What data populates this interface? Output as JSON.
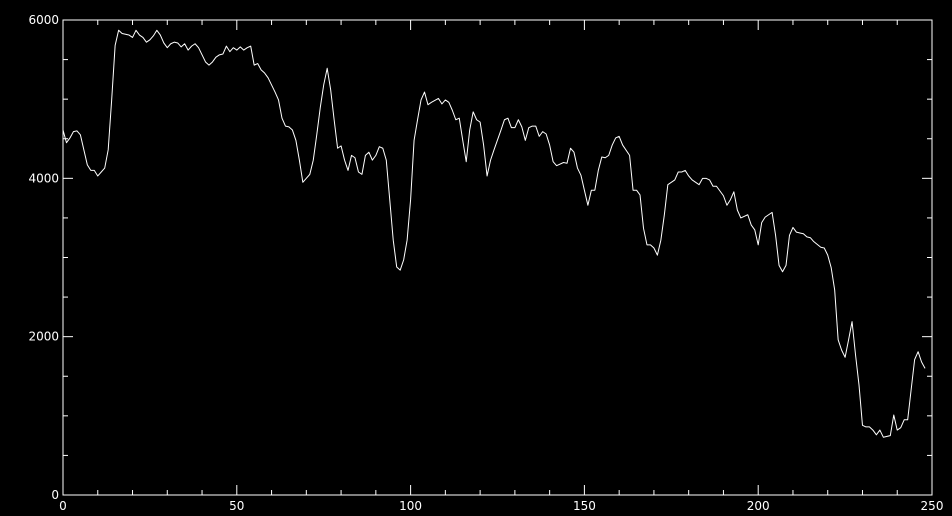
{
  "chart_data": {
    "type": "line",
    "color": "#ffffff",
    "x": [
      0,
      1,
      2,
      3,
      4,
      5,
      6,
      7,
      8,
      9,
      10,
      11,
      12,
      13,
      14,
      15,
      16,
      17,
      18,
      19,
      20,
      21,
      22,
      23,
      24,
      25,
      26,
      27,
      28,
      29,
      30,
      31,
      32,
      33,
      34,
      35,
      36,
      37,
      38,
      39,
      40,
      41,
      42,
      43,
      44,
      45,
      46,
      47,
      48,
      49,
      50,
      51,
      52,
      53,
      54,
      55,
      56,
      57,
      58,
      59,
      60,
      61,
      62,
      63,
      64,
      65,
      66,
      67,
      68,
      69,
      70,
      71,
      72,
      73,
      74,
      75,
      76,
      77,
      78,
      79,
      80,
      81,
      82,
      83,
      84,
      85,
      86,
      87,
      88,
      89,
      90,
      91,
      92,
      93,
      94,
      95,
      96,
      97,
      98,
      99,
      100,
      101,
      102,
      103,
      104,
      105,
      106,
      108,
      109,
      110,
      111,
      112,
      113,
      114,
      115,
      116,
      117,
      118,
      119,
      120,
      121,
      122,
      123,
      124,
      126,
      127,
      128,
      129,
      130,
      131,
      132,
      133,
      134,
      135,
      136,
      137,
      138,
      139,
      140,
      141,
      142,
      144,
      145,
      146,
      147,
      148,
      149,
      150,
      151,
      152,
      153,
      154,
      155,
      156,
      157,
      158,
      159,
      160,
      161,
      163,
      164,
      165,
      166,
      167,
      168,
      169,
      170,
      171,
      172,
      173,
      174,
      176,
      177,
      178,
      179,
      180,
      181,
      183,
      184,
      185,
      186,
      187,
      188,
      190,
      191,
      192,
      193,
      194,
      195,
      197,
      198,
      199,
      200,
      201,
      202,
      204,
      205,
      206,
      207,
      208,
      209,
      210,
      211,
      212,
      213,
      214,
      215,
      216,
      218,
      219,
      220,
      221,
      222,
      223,
      224,
      225,
      226,
      227,
      228,
      229,
      230,
      231,
      232,
      233,
      234,
      235,
      236,
      238,
      239,
      240,
      241,
      242,
      243,
      244,
      245,
      246,
      247,
      248
    ],
    "values": [
      4610,
      4450,
      4510,
      4590,
      4600,
      4550,
      4360,
      4170,
      4100,
      4100,
      4030,
      4080,
      4130,
      4360,
      4990,
      5680,
      5870,
      5830,
      5820,
      5810,
      5780,
      5870,
      5810,
      5780,
      5720,
      5750,
      5800,
      5870,
      5810,
      5710,
      5650,
      5700,
      5720,
      5710,
      5660,
      5700,
      5620,
      5670,
      5700,
      5650,
      5560,
      5470,
      5430,
      5470,
      5530,
      5560,
      5570,
      5670,
      5600,
      5650,
      5620,
      5660,
      5620,
      5650,
      5670,
      5430,
      5450,
      5370,
      5330,
      5270,
      5180,
      5090,
      4990,
      4760,
      4660,
      4650,
      4610,
      4480,
      4230,
      3950,
      4000,
      4050,
      4230,
      4550,
      4890,
      5180,
      5390,
      5120,
      4740,
      4380,
      4410,
      4230,
      4100,
      4290,
      4260,
      4080,
      4050,
      4290,
      4330,
      4230,
      4290,
      4400,
      4380,
      4230,
      3730,
      3220,
      2880,
      2840,
      2970,
      3220,
      3730,
      4480,
      4740,
      4990,
      5090,
      4930,
      4960,
      5010,
      4940,
      4990,
      4960,
      4860,
      4740,
      4760,
      4480,
      4210,
      4610,
      4840,
      4740,
      4710,
      4420,
      4030,
      4230,
      4360,
      4610,
      4740,
      4760,
      4640,
      4640,
      4740,
      4650,
      4480,
      4640,
      4660,
      4660,
      4530,
      4590,
      4560,
      4420,
      4210,
      4160,
      4200,
      4190,
      4380,
      4330,
      4130,
      4040,
      3850,
      3660,
      3850,
      3850,
      4100,
      4270,
      4260,
      4290,
      4420,
      4510,
      4530,
      4420,
      4290,
      3850,
      3850,
      3790,
      3370,
      3160,
      3160,
      3120,
      3030,
      3220,
      3540,
      3920,
      3980,
      4080,
      4080,
      4100,
      4030,
      3980,
      3920,
      4000,
      4000,
      3980,
      3900,
      3900,
      3780,
      3660,
      3730,
      3830,
      3600,
      3500,
      3540,
      3410,
      3350,
      3160,
      3440,
      3510,
      3570,
      3280,
      2900,
      2820,
      2900,
      3280,
      3380,
      3320,
      3310,
      3300,
      3260,
      3250,
      3200,
      3130,
      3120,
      3030,
      2870,
      2590,
      1960,
      1830,
      1740,
      1960,
      2190,
      1770,
      1390,
      880,
      860,
      860,
      820,
      760,
      820,
      730,
      750,
      1010,
      820,
      850,
      950,
      950,
      1330,
      1710,
      1810,
      1680,
      1600
    ],
    "xlim": [
      0,
      250
    ],
    "ylim": [
      0,
      6000
    ],
    "xticks": [
      0,
      50,
      100,
      150,
      200,
      250
    ],
    "yticks": [
      0,
      2000,
      4000,
      6000
    ],
    "xminorticks": [
      10,
      20,
      30,
      40,
      60,
      70,
      80,
      90,
      110,
      120,
      130,
      140,
      160,
      170,
      180,
      190,
      210,
      220,
      230,
      240
    ],
    "yminorticks": [
      500,
      1000,
      1500,
      2500,
      3000,
      3500,
      4500,
      5000,
      5500
    ]
  }
}
